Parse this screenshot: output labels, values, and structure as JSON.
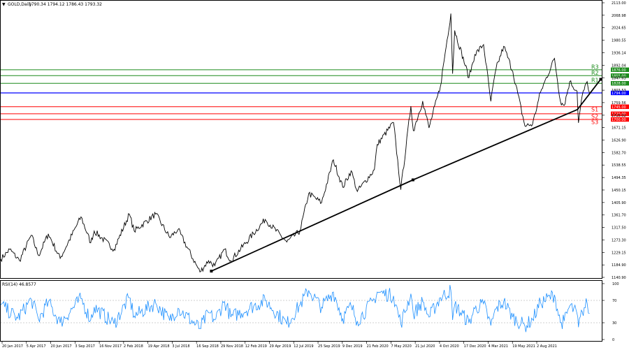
{
  "header": {
    "symbol": "GOLD,Daily",
    "ohlc": "1790.34 1794.12 1786.43 1793.32"
  },
  "colors": {
    "resistance": "#1a8a1a",
    "support": "#ff0000",
    "pivot": "#0000ff",
    "rsi": "#1e90ff",
    "price": "#000000",
    "trendline": "#000000"
  },
  "chart_data": [
    {
      "type": "line",
      "title": "GOLD,Daily",
      "ylim": [
        1140.9,
        2113.0
      ],
      "y_ticks": [
        2113.0,
        2068.98,
        2024.65,
        1980.55,
        1936.14,
        1892.04,
        1847.63,
        1803.53,
        1759.56,
        1715.02,
        1671.15,
        1626.9,
        1582.7,
        1538.55,
        1494.35,
        1450.15,
        1405.9,
        1361.7,
        1317.5,
        1273.3,
        1229.15,
        1184.9,
        1140.9
      ],
      "x_ticks": [
        "20 Jan 2017",
        "5 Apr 2017",
        "20 Jun 2017",
        "3 Sep 2017",
        "16 Nov 2017",
        "2 Feb 2018",
        "19 Apr 2018",
        "3 Jul 2018",
        "16 Sep 2018",
        "29 Nov 2018",
        "12 Feb 2019",
        "29 Apr 2019",
        "12 Jul 2019",
        "25 Sep 2019",
        "9 Dec 2019",
        "21 Feb 2020",
        "7 May 2020",
        "21 Jul 2020",
        "4 Oct 2020",
        "17 Dec 2020",
        "4 Mar 2021",
        "19 May 2021",
        "2 Aug 2021"
      ],
      "price_series": [
        [
          "2017-01-20",
          1205
        ],
        [
          "2017-02-15",
          1240
        ],
        [
          "2017-03-15",
          1200
        ],
        [
          "2017-04-18",
          1290
        ],
        [
          "2017-05-09",
          1218
        ],
        [
          "2017-06-06",
          1295
        ],
        [
          "2017-07-10",
          1208
        ],
        [
          "2017-09-08",
          1355
        ],
        [
          "2017-10-06",
          1263
        ],
        [
          "2017-10-16",
          1305
        ],
        [
          "2017-12-12",
          1240
        ],
        [
          "2018-01-25",
          1365
        ],
        [
          "2018-02-08",
          1305
        ],
        [
          "2018-04-11",
          1365
        ],
        [
          "2018-05-21",
          1282
        ],
        [
          "2018-06-14",
          1310
        ],
        [
          "2018-08-16",
          1160
        ],
        [
          "2018-09-10",
          1200
        ],
        [
          "2018-09-28",
          1182
        ],
        [
          "2018-10-26",
          1240
        ],
        [
          "2018-11-13",
          1200
        ],
        [
          "2019-02-20",
          1346
        ],
        [
          "2019-04-23",
          1266
        ],
        [
          "2019-05-31",
          1305
        ],
        [
          "2019-06-25",
          1438
        ],
        [
          "2019-08-01",
          1405
        ],
        [
          "2019-09-04",
          1557
        ],
        [
          "2019-10-01",
          1460
        ],
        [
          "2019-10-25",
          1518
        ],
        [
          "2019-11-12",
          1445
        ],
        [
          "2019-12-31",
          1522
        ],
        [
          "2020-01-08",
          1611
        ],
        [
          "2020-02-24",
          1689
        ],
        [
          "2020-03-16",
          1451
        ],
        [
          "2020-04-14",
          1747
        ],
        [
          "2020-04-21",
          1660
        ],
        [
          "2020-05-18",
          1765
        ],
        [
          "2020-06-05",
          1670
        ],
        [
          "2020-07-08",
          1818
        ],
        [
          "2020-08-07",
          2075
        ],
        [
          "2020-08-12",
          1862
        ],
        [
          "2020-08-18",
          2015
        ],
        [
          "2020-09-28",
          1848
        ],
        [
          "2020-10-15",
          1930
        ],
        [
          "2020-11-09",
          1965
        ],
        [
          "2020-11-30",
          1764
        ],
        [
          "2020-12-15",
          1880
        ],
        [
          "2021-01-06",
          1959
        ],
        [
          "2021-02-01",
          1870
        ],
        [
          "2021-03-08",
          1677
        ],
        [
          "2021-03-30",
          1683
        ],
        [
          "2021-04-22",
          1797
        ],
        [
          "2021-06-01",
          1916
        ],
        [
          "2021-06-18",
          1765
        ],
        [
          "2021-06-29",
          1750
        ],
        [
          "2021-07-15",
          1834
        ],
        [
          "2021-08-05",
          1800
        ],
        [
          "2021-08-09",
          1688
        ],
        [
          "2021-08-20",
          1785
        ],
        [
          "2021-09-03",
          1834
        ],
        [
          "2021-09-10",
          1793
        ]
      ],
      "levels": [
        {
          "label": "R3",
          "price_label": "1876.00",
          "value": 1876.0,
          "kind": "resistance"
        },
        {
          "label": "R2",
          "price_label": "1855.00",
          "value": 1855.0,
          "kind": "resistance"
        },
        {
          "label": "R1",
          "price_label": "1828.00",
          "value": 1828.0,
          "kind": "resistance"
        },
        {
          "label": "",
          "price_label": "1794.00",
          "value": 1794.0,
          "kind": "pivot"
        },
        {
          "label": "S1",
          "price_label": "1745.00",
          "value": 1745.0,
          "kind": "support"
        },
        {
          "label": "S2",
          "price_label": "1720.00",
          "value": 1720.0,
          "kind": "support"
        },
        {
          "label": "S3",
          "price_label": "1700.00",
          "value": 1700.0,
          "kind": "support"
        }
      ],
      "trendline": {
        "points": [
          [
            "2018-09-18",
            1163
          ],
          [
            "2020-04-20",
            1486
          ],
          [
            "2021-08-06",
            1735
          ],
          [
            "2021-10-12",
            1842
          ]
        ]
      }
    },
    {
      "type": "line",
      "title": "RSI(14) 46.8577",
      "ylim": [
        0,
        100
      ],
      "y_ticks": [
        100,
        70,
        30,
        0
      ],
      "levels": [
        70,
        30
      ],
      "rsi_series": [
        [
          "2017-01-20",
          62
        ],
        [
          "2017-03-10",
          38
        ],
        [
          "2017-04-18",
          72
        ],
        [
          "2017-05-09",
          36
        ],
        [
          "2017-06-06",
          67
        ],
        [
          "2017-07-10",
          30
        ],
        [
          "2017-09-08",
          73
        ],
        [
          "2017-10-06",
          35
        ],
        [
          "2017-10-16",
          58
        ],
        [
          "2017-12-12",
          28
        ],
        [
          "2018-01-25",
          75
        ],
        [
          "2018-02-08",
          42
        ],
        [
          "2018-04-11",
          65
        ],
        [
          "2018-05-21",
          34
        ],
        [
          "2018-06-14",
          56
        ],
        [
          "2018-08-16",
          20
        ],
        [
          "2018-09-10",
          48
        ],
        [
          "2018-09-28",
          35
        ],
        [
          "2018-10-26",
          68
        ],
        [
          "2018-11-13",
          40
        ],
        [
          "2019-02-20",
          70
        ],
        [
          "2019-04-23",
          28
        ],
        [
          "2019-05-31",
          62
        ],
        [
          "2019-06-25",
          88
        ],
        [
          "2019-08-01",
          58
        ],
        [
          "2019-09-04",
          85
        ],
        [
          "2019-10-01",
          38
        ],
        [
          "2019-10-25",
          60
        ],
        [
          "2019-11-12",
          33
        ],
        [
          "2019-12-31",
          72
        ],
        [
          "2020-01-08",
          85
        ],
        [
          "2020-02-24",
          78
        ],
        [
          "2020-03-16",
          28
        ],
        [
          "2020-04-14",
          82
        ],
        [
          "2020-04-21",
          45
        ],
        [
          "2020-05-18",
          68
        ],
        [
          "2020-06-05",
          40
        ],
        [
          "2020-07-08",
          75
        ],
        [
          "2020-08-07",
          88
        ],
        [
          "2020-08-12",
          35
        ],
        [
          "2020-08-18",
          62
        ],
        [
          "2020-09-28",
          30
        ],
        [
          "2020-10-15",
          55
        ],
        [
          "2020-11-09",
          64
        ],
        [
          "2020-11-30",
          25
        ],
        [
          "2020-12-15",
          55
        ],
        [
          "2021-01-06",
          68
        ],
        [
          "2021-02-01",
          40
        ],
        [
          "2021-03-08",
          24
        ],
        [
          "2021-03-30",
          36
        ],
        [
          "2021-04-22",
          66
        ],
        [
          "2021-06-01",
          80
        ],
        [
          "2021-06-18",
          30
        ],
        [
          "2021-06-29",
          33
        ],
        [
          "2021-07-15",
          60
        ],
        [
          "2021-08-05",
          46
        ],
        [
          "2021-08-09",
          22
        ],
        [
          "2021-08-20",
          50
        ],
        [
          "2021-09-03",
          65
        ],
        [
          "2021-09-10",
          47
        ]
      ]
    }
  ]
}
